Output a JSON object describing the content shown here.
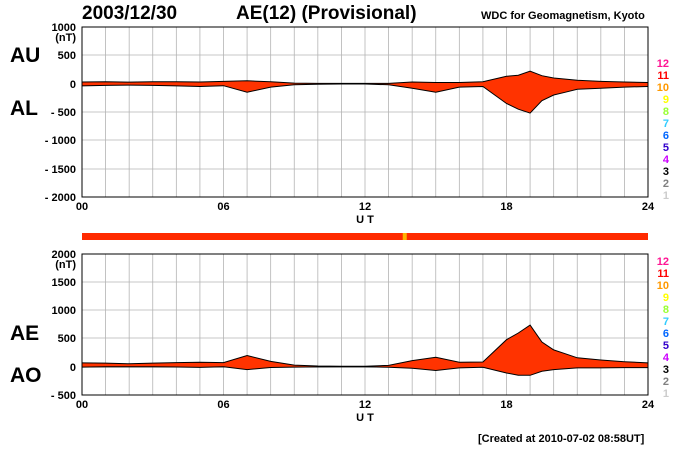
{
  "header": {
    "date": "2003/12/30",
    "title": "AE(12) (Provisional)",
    "source": "WDC for Geomagnetism, Kyoto"
  },
  "footer": "[Created at 2010-07-02 08:58UT]",
  "colors": {
    "fill": "#ff3300",
    "outline": "#000000",
    "grid": "#b4b4b4",
    "bar": "#ff2a00",
    "bar_marker": "#ffb300"
  },
  "level_legend": [
    {
      "label": "12",
      "color": "#ff1493"
    },
    {
      "label": "11",
      "color": "#ff0000"
    },
    {
      "label": "10",
      "color": "#ff9900"
    },
    {
      "label": "9",
      "color": "#ffff00"
    },
    {
      "label": "8",
      "color": "#99ff33"
    },
    {
      "label": "7",
      "color": "#33ccff"
    },
    {
      "label": "6",
      "color": "#0066ff"
    },
    {
      "label": "5",
      "color": "#3300cc"
    },
    {
      "label": "4",
      "color": "#cc00ff"
    },
    {
      "label": "3",
      "color": "#000000"
    },
    {
      "label": "2",
      "color": "#808080"
    },
    {
      "label": "1",
      "color": "#cccccc"
    }
  ],
  "chart_data": [
    {
      "type": "area",
      "series": [
        {
          "name": "AU",
          "x": [
            0,
            1,
            2,
            3,
            4,
            5,
            6,
            7,
            8,
            9,
            10,
            11,
            12,
            13,
            14,
            15,
            16,
            17,
            18,
            18.5,
            19,
            19.5,
            20,
            20.5,
            21,
            22,
            23,
            24
          ],
          "values": [
            30,
            35,
            28,
            35,
            35,
            30,
            40,
            50,
            35,
            10,
            5,
            5,
            5,
            5,
            30,
            20,
            20,
            35,
            130,
            150,
            220,
            140,
            100,
            80,
            60,
            40,
            30,
            20
          ]
        },
        {
          "name": "AL",
          "x": [
            0,
            1,
            2,
            3,
            4,
            5,
            6,
            7,
            8,
            9,
            10,
            11,
            12,
            13,
            14,
            15,
            16,
            17,
            18,
            18.5,
            19,
            19.5,
            20,
            20.5,
            21,
            22,
            23,
            24
          ],
          "values": [
            -40,
            -30,
            -25,
            -30,
            -40,
            -50,
            -35,
            -150,
            -60,
            -20,
            -10,
            -5,
            -5,
            -20,
            -80,
            -150,
            -60,
            -50,
            -350,
            -450,
            -520,
            -300,
            -200,
            -150,
            -100,
            -80,
            -60,
            -50
          ]
        }
      ],
      "xlabel": "U T",
      "ylabel": "(nT)",
      "xticks": [
        "00",
        "06",
        "12",
        "18",
        "24"
      ],
      "yticks": [
        "1000",
        "500",
        "0",
        "- 500",
        "- 1000",
        "- 1500",
        "- 2000"
      ],
      "xlim": [
        0,
        24
      ],
      "ylim": [
        -2000,
        1000
      ],
      "labels": [
        "AU",
        "AL"
      ],
      "grid": true
    },
    {
      "type": "area",
      "series": [
        {
          "name": "AE",
          "x": [
            0,
            1,
            2,
            3,
            4,
            5,
            6,
            7,
            8,
            9,
            10,
            11,
            12,
            13,
            14,
            15,
            16,
            17,
            18,
            18.5,
            19,
            19.5,
            20,
            20.5,
            21,
            22,
            23,
            24
          ],
          "values": [
            70,
            65,
            53,
            65,
            75,
            80,
            75,
            200,
            95,
            30,
            15,
            10,
            10,
            25,
            110,
            170,
            80,
            85,
            480,
            600,
            740,
            440,
            300,
            230,
            160,
            120,
            90,
            70
          ]
        },
        {
          "name": "AO",
          "x": [
            0,
            1,
            2,
            3,
            4,
            5,
            6,
            7,
            8,
            9,
            10,
            11,
            12,
            13,
            14,
            15,
            16,
            17,
            18,
            18.5,
            19,
            19.5,
            20,
            20.5,
            21,
            22,
            23,
            24
          ],
          "values": [
            -5,
            2,
            1,
            2,
            -3,
            -10,
            2,
            -50,
            -12,
            -5,
            -2,
            0,
            0,
            -8,
            -25,
            -65,
            -20,
            -8,
            -110,
            -150,
            -150,
            -80,
            -50,
            -35,
            -20,
            -20,
            -15,
            -15
          ]
        }
      ],
      "xlabel": "U T",
      "ylabel": "(nT)",
      "xticks": [
        "00",
        "06",
        "12",
        "18",
        "24"
      ],
      "yticks": [
        "2000",
        "1500",
        "1000",
        "500",
        "0",
        "- 500"
      ],
      "xlim": [
        0,
        24
      ],
      "ylim": [
        -500,
        2000
      ],
      "labels": [
        "AE",
        "AO"
      ],
      "grid": true
    }
  ],
  "station_bar": {
    "level": "11",
    "marker_at_ut": 13.6
  }
}
